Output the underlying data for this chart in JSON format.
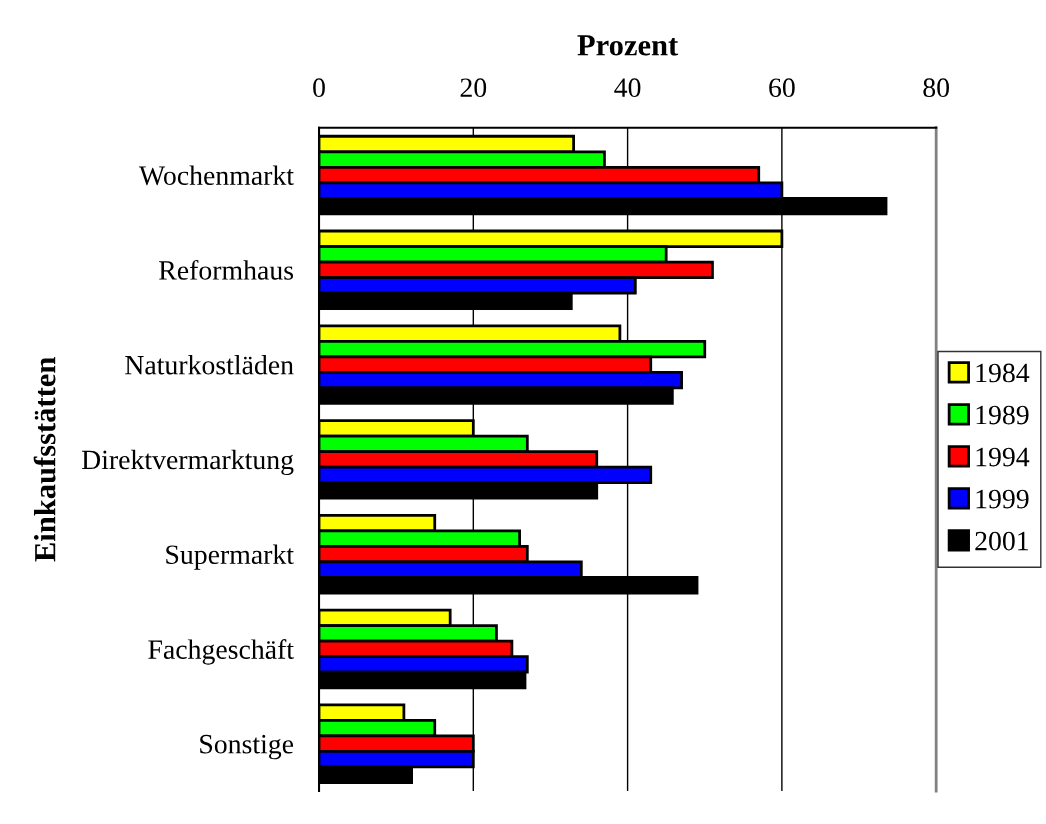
{
  "chart_data": {
    "type": "bar",
    "orientation": "horizontal",
    "xlabel": "Prozent",
    "ylabel": "Einkaufsstätten",
    "categories": [
      "Wochenmarkt",
      "Reformhaus",
      "Naturkostläden",
      "Direktvermarktung",
      "Supermarkt",
      "Fachgeschäft",
      "Sonstige"
    ],
    "series": [
      {
        "name": "1984",
        "color": "#ffff00",
        "values": [
          33,
          60,
          39,
          20,
          15,
          17,
          11
        ]
      },
      {
        "name": "1989",
        "color": "#00ff00",
        "values": [
          37,
          45,
          50,
          27,
          26,
          23,
          15
        ]
      },
      {
        "name": "1994",
        "color": "#ff0000",
        "values": [
          57,
          51,
          43,
          36,
          27,
          25,
          20
        ]
      },
      {
        "name": "1999",
        "color": "#0000ff",
        "values": [
          60,
          41,
          47,
          43,
          34,
          27,
          20
        ]
      },
      {
        "name": "2001",
        "color": "#000000",
        "values": [
          73.5,
          32.7,
          45.8,
          36,
          49,
          26.7,
          12
        ]
      }
    ],
    "xlim": [
      0,
      80
    ],
    "xticks": [
      0,
      20,
      40,
      60,
      80
    ],
    "grid": "x",
    "legend": "right"
  }
}
